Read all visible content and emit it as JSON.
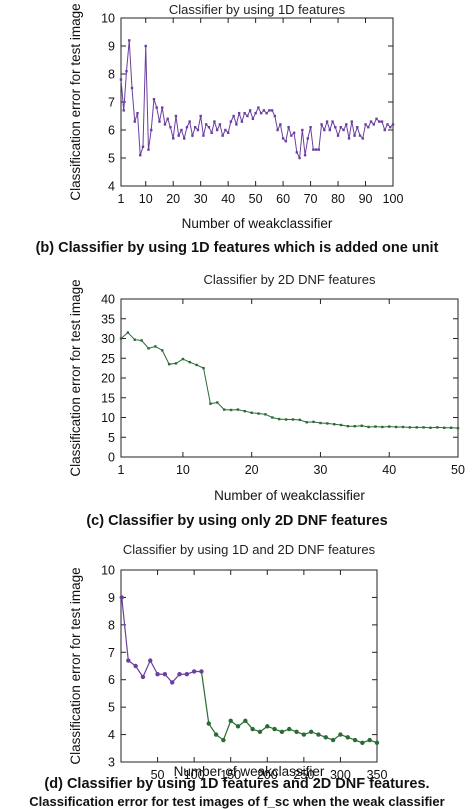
{
  "captions": {
    "b": "(b) Classifier by using 1D features which is added one unit",
    "c": "(c) Classifier by using only 2D DNF features",
    "d": "(d) Classifier by using 1D features and 2D DNF features.",
    "bottom": "Classification error for test images of f_sc when the weak classifier"
  },
  "chart_data": [
    {
      "type": "line",
      "title": "Classifier by using 1D features",
      "xlabel": "Number of weakclassifier",
      "ylabel": "Classification error for test image",
      "xlim": [
        1,
        100
      ],
      "ylim": [
        4,
        10
      ],
      "xticks": [
        1,
        10,
        20,
        30,
        40,
        50,
        60,
        70,
        80,
        90,
        100
      ],
      "yticks": [
        4,
        5,
        6,
        7,
        8,
        9,
        10
      ],
      "grid": false,
      "legend": "none",
      "color": "#6b3fa0",
      "x": [
        1,
        2,
        3,
        4,
        5,
        6,
        7,
        8,
        9,
        10,
        11,
        12,
        13,
        14,
        15,
        16,
        17,
        18,
        19,
        20,
        21,
        22,
        23,
        24,
        25,
        26,
        27,
        28,
        29,
        30,
        31,
        32,
        33,
        34,
        35,
        36,
        37,
        38,
        39,
        40,
        41,
        42,
        43,
        44,
        45,
        46,
        47,
        48,
        49,
        50,
        51,
        52,
        53,
        54,
        55,
        56,
        57,
        58,
        59,
        60,
        61,
        62,
        63,
        64,
        65,
        66,
        67,
        68,
        69,
        70,
        71,
        72,
        73,
        74,
        75,
        76,
        77,
        78,
        79,
        80,
        81,
        82,
        83,
        84,
        85,
        86,
        87,
        88,
        89,
        90,
        91,
        92,
        93,
        94,
        95,
        96,
        97,
        98,
        99,
        100
      ],
      "values": [
        7.8,
        6.7,
        8.1,
        9.2,
        7.5,
        6.3,
        6.6,
        5.1,
        5.4,
        9.0,
        5.3,
        6.0,
        7.1,
        6.8,
        6.3,
        6.8,
        6.2,
        6.4,
        6.1,
        5.7,
        6.5,
        5.8,
        6.0,
        5.7,
        6.1,
        6.3,
        5.8,
        6.1,
        6.0,
        6.5,
        5.8,
        6.2,
        6.1,
        5.9,
        6.3,
        6.0,
        6.2,
        5.8,
        6.0,
        5.9,
        6.3,
        6.5,
        6.2,
        6.6,
        6.3,
        6.6,
        6.5,
        6.7,
        6.4,
        6.6,
        6.8,
        6.6,
        6.7,
        6.6,
        6.7,
        6.7,
        6.5,
        6.0,
        6.2,
        5.7,
        5.6,
        6.1,
        5.8,
        5.9,
        5.2,
        5.0,
        6.0,
        5.1,
        5.7,
        6.1,
        5.3,
        5.3,
        5.3,
        6.2,
        6.0,
        6.3,
        6.0,
        6.3,
        6.1,
        5.8,
        6.1,
        6.0,
        6.2,
        5.7,
        6.3,
        5.8,
        6.1,
        5.8,
        5.7,
        6.2,
        6.1,
        6.3,
        6.2,
        6.4,
        6.3,
        6.3,
        6.0,
        6.2,
        6.1,
        6.2
      ]
    },
    {
      "type": "line",
      "title": "Classifier by 2D DNF features",
      "xlabel": "Number of weakclassifier",
      "ylabel": "Classification error for test image",
      "xlim": [
        1,
        50
      ],
      "ylim": [
        0,
        40
      ],
      "xticks": [
        1,
        10,
        20,
        30,
        40,
        50
      ],
      "yticks": [
        0,
        5,
        10,
        15,
        20,
        25,
        30,
        35,
        40
      ],
      "grid": false,
      "legend": "none",
      "color": "#2a6b33",
      "x": [
        1,
        2,
        3,
        4,
        5,
        6,
        7,
        8,
        9,
        10,
        11,
        12,
        13,
        14,
        15,
        16,
        17,
        18,
        19,
        20,
        21,
        22,
        23,
        24,
        25,
        26,
        27,
        28,
        29,
        30,
        31,
        32,
        33,
        34,
        35,
        36,
        37,
        38,
        39,
        40,
        41,
        42,
        43,
        44,
        45,
        46,
        47,
        48,
        49,
        50
      ],
      "values": [
        30,
        31.5,
        29.7,
        29.5,
        27.5,
        28,
        27,
        23.5,
        23.7,
        24.8,
        24,
        23.3,
        22.5,
        13.5,
        13.8,
        12,
        11.9,
        12,
        11.6,
        11.2,
        11,
        10.8,
        10,
        9.6,
        9.5,
        9.5,
        9.4,
        8.8,
        8.9,
        8.6,
        8.5,
        8.3,
        8.1,
        7.8,
        7.8,
        7.9,
        7.6,
        7.7,
        7.6,
        7.7,
        7.6,
        7.6,
        7.5,
        7.5,
        7.5,
        7.4,
        7.5,
        7.4,
        7.4,
        7.3
      ]
    },
    {
      "type": "line",
      "title": "Classifier by using 1D and 2D DNF features",
      "xlabel": "Number of weakclassifier",
      "ylabel": "Classification error for test image",
      "xlim": [
        0,
        350
      ],
      "ylim": [
        3,
        10
      ],
      "xticks": [
        50,
        100,
        150,
        200,
        250,
        300,
        350
      ],
      "yticks": [
        3,
        4,
        5,
        6,
        7,
        8,
        9,
        10
      ],
      "grid": false,
      "legend": "none",
      "color": "#6b3fa0",
      "color2": "#2a6b33",
      "x": [
        1,
        10,
        20,
        30,
        40,
        50,
        60,
        70,
        80,
        90,
        100,
        110,
        120,
        130,
        140,
        150,
        160,
        170,
        180,
        190,
        200,
        210,
        220,
        230,
        240,
        250,
        260,
        270,
        280,
        290,
        300,
        310,
        320,
        330,
        340,
        350
      ],
      "values": [
        9.0,
        6.7,
        6.5,
        6.1,
        6.7,
        6.2,
        6.2,
        5.9,
        6.2,
        6.2,
        6.3,
        6.3,
        4.4,
        4.0,
        3.8,
        4.5,
        4.3,
        4.5,
        4.2,
        4.1,
        4.3,
        4.2,
        4.1,
        4.2,
        4.1,
        4.0,
        4.1,
        4.0,
        3.9,
        3.8,
        4.0,
        3.9,
        3.8,
        3.7,
        3.8,
        3.7
      ],
      "split_x": 110
    }
  ]
}
